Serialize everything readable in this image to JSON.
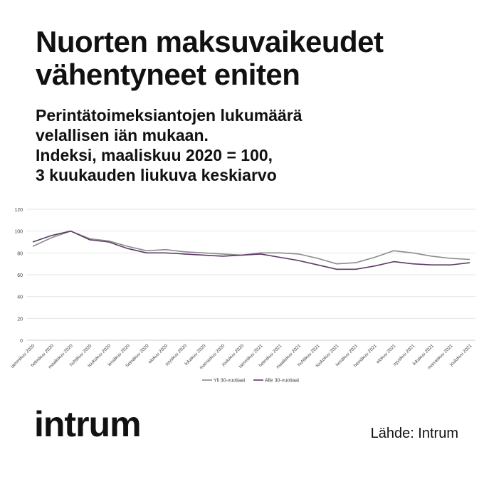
{
  "headline": "Nuorten maksuvaikeudet vähentyneet eniten",
  "subtitle": {
    "lines": [
      "Perintätoimeksiantojen lukumäärä",
      "velallisen iän mukaan.",
      "Indeksi, maaliskuu 2020 = 100,",
      "3 kuukauden liukuva keskiarvo"
    ]
  },
  "logo": "intrum",
  "source": "Lähde: Intrum",
  "colors": {
    "series_over_30": "#8c8c8c",
    "series_under_30": "#5e3a66",
    "grid": "#e6e6e6",
    "text": "#111111"
  },
  "chart_data": {
    "type": "line",
    "title": "",
    "xlabel": "",
    "ylabel": "",
    "ylim": [
      0,
      120
    ],
    "yticks": [
      0,
      20,
      40,
      60,
      80,
      100,
      120
    ],
    "grid": true,
    "legend_position": "bottom",
    "categories": [
      "tammikuu 2020",
      "helmikuu 2020",
      "maaliskuu 2020",
      "huhtikuu 2020",
      "toukokuu 2020",
      "kesäkuu 2020",
      "heinäkuu 2020",
      "elokuu 2020",
      "syyskuu 2020",
      "lokakuu 2020",
      "marraskuu 2020",
      "joulukuu 2020",
      "tammikuu 2021",
      "helmikuu 2021",
      "maaliskuu 2021",
      "huhtikuu 2021",
      "toukokuu 2021",
      "kesäkuu 2021",
      "heinäkuu 2021",
      "elokuu 2021",
      "syyskuu 2021",
      "lokakuu 2021",
      "marraskuu 2021",
      "joulukuu 2021"
    ],
    "series": [
      {
        "name": "Yli 30-vuotiaat",
        "color": "#8c8c8c",
        "values": [
          86,
          94,
          100,
          93,
          91,
          86,
          82,
          83,
          81,
          80,
          79,
          78,
          80,
          80,
          79,
          75,
          70,
          71,
          76,
          82,
          80,
          77,
          75,
          74
        ]
      },
      {
        "name": "Alle 30-vuotiaat",
        "color": "#5e3a66",
        "values": [
          90,
          96,
          100,
          92,
          90,
          84,
          80,
          80,
          79,
          78,
          77,
          78,
          79,
          76,
          73,
          69,
          65,
          65,
          68,
          72,
          70,
          69,
          69,
          71
        ]
      }
    ]
  }
}
